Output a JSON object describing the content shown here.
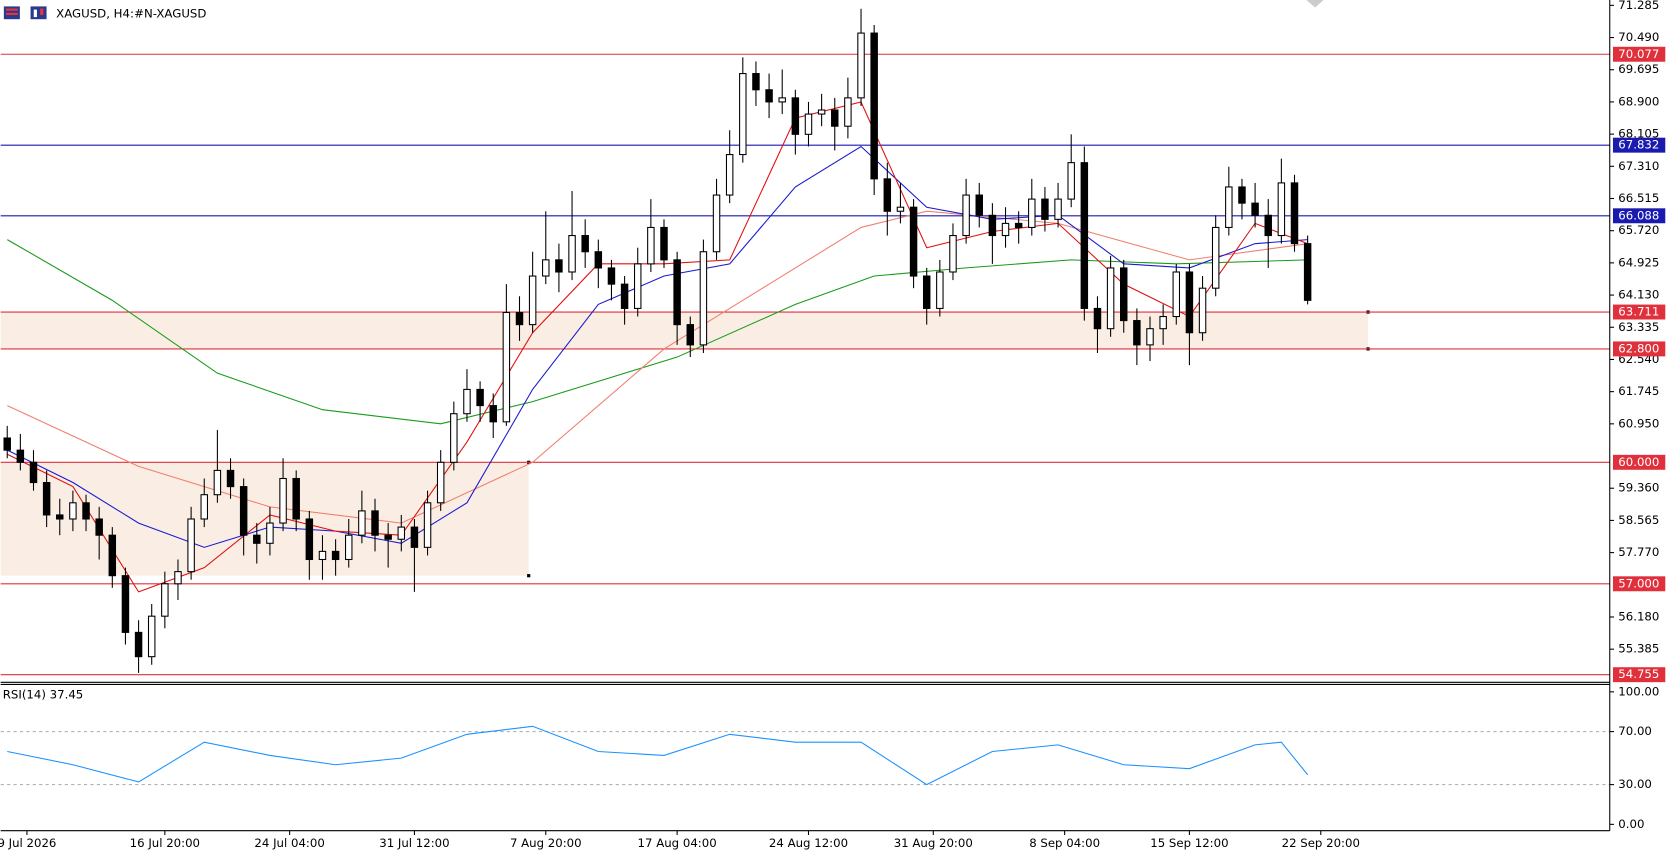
{
  "header": {
    "symbol": "XAGUSD, H4:",
    "name": "#N-XAGUSD"
  },
  "chart_data": [
    {
      "type": "candlestick",
      "xlim": [
        -0.5,
        122
      ],
      "xticks": [
        {
          "value": 1.5,
          "label": "9 Jul 2026"
        },
        {
          "value": 12,
          "label": "16 Jul 20:00"
        },
        {
          "value": 21.5,
          "label": "24 Jul 04:00"
        },
        {
          "value": 31,
          "label": "31 Jul 12:00"
        },
        {
          "value": 41,
          "label": "7 Aug 20:00"
        },
        {
          "value": 51,
          "label": "17 Aug 04:00"
        },
        {
          "value": 61,
          "label": "24 Aug 12:00"
        },
        {
          "value": 70.5,
          "label": "31 Aug 20:00"
        },
        {
          "value": 80.5,
          "label": "8 Sep 04:00"
        },
        {
          "value": 90,
          "label": "15 Sep 12:00"
        },
        {
          "value": 100,
          "label": "22 Sep 20:00"
        }
      ],
      "ylim": [
        54.62,
        71.417
      ],
      "yticks": [
        71.285,
        {
          "value": 70.49,
          "label": "70.490"
        },
        69.695,
        {
          "value": 68.9,
          "label": "68.900"
        },
        68.105,
        {
          "value": 67.31,
          "label": "67.310"
        },
        66.515,
        {
          "value": 65.72,
          "label": "65.720"
        },
        64.925,
        {
          "value": 64.13,
          "label": "64.130"
        },
        63.335,
        {
          "value": 62.54,
          "label": "62.540"
        },
        61.745,
        {
          "value": 60.95,
          "label": "60.950"
        },
        {
          "value": 59.36,
          "label": "59.360"
        },
        58.565,
        {
          "value": 57.77,
          "label": "57.770"
        },
        {
          "value": 56.18,
          "label": "56.180"
        },
        55.385
      ],
      "ohlc": [
        [
          60.6,
          60.9,
          60.1,
          60.3
        ],
        [
          60.3,
          60.7,
          59.8,
          60.0
        ],
        [
          60.0,
          60.3,
          59.3,
          59.5
        ],
        [
          59.5,
          59.8,
          58.4,
          58.7
        ],
        [
          58.7,
          59.1,
          58.2,
          58.6
        ],
        [
          58.6,
          59.3,
          58.3,
          59.0
        ],
        [
          59.0,
          59.2,
          58.3,
          58.6
        ],
        [
          58.6,
          58.9,
          57.6,
          58.2
        ],
        [
          58.2,
          58.4,
          56.9,
          57.2
        ],
        [
          57.2,
          57.4,
          55.5,
          55.8
        ],
        [
          55.8,
          56.1,
          54.8,
          55.2
        ],
        [
          55.2,
          56.5,
          55.0,
          56.2
        ],
        [
          56.2,
          57.3,
          55.9,
          57.0
        ],
        [
          57.0,
          57.6,
          56.6,
          57.3
        ],
        [
          57.3,
          58.9,
          57.1,
          58.6
        ],
        [
          58.6,
          59.6,
          58.4,
          59.2
        ],
        [
          59.2,
          60.8,
          59.0,
          59.8
        ],
        [
          59.8,
          60.1,
          59.1,
          59.4
        ],
        [
          59.4,
          59.6,
          57.7,
          58.2
        ],
        [
          58.2,
          58.5,
          57.5,
          58.0
        ],
        [
          58.0,
          58.9,
          57.7,
          58.5
        ],
        [
          58.5,
          60.1,
          58.3,
          59.6
        ],
        [
          59.6,
          59.8,
          58.3,
          58.6
        ],
        [
          58.6,
          58.8,
          57.1,
          57.6
        ],
        [
          57.6,
          58.2,
          57.1,
          57.8
        ],
        [
          57.8,
          58.1,
          57.2,
          57.6
        ],
        [
          57.6,
          58.6,
          57.4,
          58.2
        ],
        [
          58.2,
          59.3,
          58.0,
          58.8
        ],
        [
          58.8,
          59.1,
          57.8,
          58.2
        ],
        [
          58.2,
          58.5,
          57.4,
          58.1
        ],
        [
          58.1,
          58.7,
          57.8,
          58.4
        ],
        [
          58.4,
          58.6,
          56.8,
          57.9
        ],
        [
          57.9,
          59.3,
          57.7,
          59.0
        ],
        [
          59.0,
          60.3,
          58.8,
          60.0
        ],
        [
          60.0,
          61.5,
          59.8,
          61.2
        ],
        [
          61.2,
          62.3,
          61.0,
          61.8
        ],
        [
          61.8,
          62.0,
          61.0,
          61.4
        ],
        [
          61.4,
          61.7,
          60.6,
          61.0
        ],
        [
          61.0,
          64.4,
          60.9,
          63.7
        ],
        [
          63.7,
          64.1,
          63.0,
          63.4
        ],
        [
          63.4,
          65.2,
          63.2,
          64.6
        ],
        [
          64.6,
          66.2,
          64.4,
          65.0
        ],
        [
          65.0,
          65.4,
          64.2,
          64.7
        ],
        [
          64.7,
          66.7,
          64.5,
          65.6
        ],
        [
          65.6,
          66.0,
          64.8,
          65.2
        ],
        [
          65.2,
          65.5,
          64.3,
          64.8
        ],
        [
          64.8,
          65.0,
          64.0,
          64.4
        ],
        [
          64.4,
          64.6,
          63.4,
          63.8
        ],
        [
          63.8,
          65.3,
          63.6,
          64.9
        ],
        [
          64.9,
          66.5,
          64.7,
          65.8
        ],
        [
          65.8,
          66.0,
          64.8,
          65.0
        ],
        [
          65.0,
          65.2,
          62.9,
          63.4
        ],
        [
          63.4,
          63.6,
          62.6,
          62.9
        ],
        [
          62.9,
          65.5,
          62.7,
          65.2
        ],
        [
          65.2,
          67.0,
          65.0,
          66.6
        ],
        [
          66.6,
          68.2,
          66.4,
          67.6
        ],
        [
          67.6,
          70.0,
          67.4,
          69.6
        ],
        [
          69.6,
          69.9,
          68.8,
          69.2
        ],
        [
          69.2,
          69.6,
          68.5,
          68.9
        ],
        [
          68.9,
          69.7,
          68.6,
          69.0
        ],
        [
          69.0,
          69.2,
          67.6,
          68.1
        ],
        [
          68.1,
          68.9,
          67.8,
          68.6
        ],
        [
          68.6,
          69.1,
          68.3,
          68.7
        ],
        [
          68.7,
          69.0,
          67.7,
          68.3
        ],
        [
          68.3,
          69.5,
          68.0,
          69.0
        ],
        [
          69.0,
          71.2,
          68.8,
          70.6
        ],
        [
          70.6,
          70.8,
          66.6,
          67.0
        ],
        [
          67.0,
          67.4,
          65.6,
          66.2
        ],
        [
          66.2,
          66.9,
          65.9,
          66.3
        ],
        [
          66.3,
          66.5,
          64.3,
          64.6
        ],
        [
          64.6,
          64.8,
          63.4,
          63.8
        ],
        [
          63.8,
          65.0,
          63.6,
          64.7
        ],
        [
          64.7,
          65.9,
          64.5,
          65.6
        ],
        [
          65.6,
          67.0,
          65.4,
          66.6
        ],
        [
          66.6,
          66.9,
          65.8,
          66.1
        ],
        [
          66.1,
          66.4,
          64.9,
          65.6
        ],
        [
          65.6,
          66.3,
          65.3,
          65.9
        ],
        [
          65.9,
          66.2,
          65.4,
          65.8
        ],
        [
          65.8,
          67.0,
          65.6,
          66.5
        ],
        [
          66.5,
          66.8,
          65.7,
          66.0
        ],
        [
          66.0,
          66.9,
          65.8,
          66.5
        ],
        [
          66.5,
          68.1,
          66.3,
          67.4
        ],
        [
          67.4,
          67.8,
          63.5,
          63.8
        ],
        [
          63.8,
          64.1,
          62.7,
          63.3
        ],
        [
          63.3,
          65.1,
          63.1,
          64.8
        ],
        [
          64.8,
          65.0,
          63.2,
          63.5
        ],
        [
          63.5,
          63.8,
          62.4,
          62.9
        ],
        [
          62.9,
          63.6,
          62.5,
          63.3
        ],
        [
          63.3,
          63.9,
          62.9,
          63.6
        ],
        [
          63.6,
          64.9,
          63.4,
          64.7
        ],
        [
          64.7,
          64.9,
          62.4,
          63.2
        ],
        [
          63.2,
          64.6,
          63.0,
          64.3
        ],
        [
          64.3,
          66.1,
          64.1,
          65.8
        ],
        [
          65.8,
          67.3,
          65.6,
          66.8
        ],
        [
          66.8,
          67.0,
          66.0,
          66.4
        ],
        [
          66.4,
          66.9,
          65.8,
          66.1
        ],
        [
          66.1,
          66.5,
          64.8,
          65.6
        ],
        [
          65.6,
          67.5,
          65.4,
          66.9
        ],
        [
          66.9,
          67.1,
          65.2,
          65.4
        ],
        [
          65.4,
          65.6,
          63.9,
          64.0
        ]
      ],
      "up_color": "#ffffff",
      "down_color": "#000000",
      "moving_averages": [
        {
          "color": "#1a9a1a",
          "x": [
            0,
            8,
            16,
            24,
            33,
            40,
            51,
            60,
            66,
            73,
            81,
            89,
            99
          ],
          "values": [
            65.5,
            64.0,
            62.2,
            61.3,
            60.95,
            61.5,
            62.6,
            63.9,
            64.6,
            64.8,
            65.0,
            64.9,
            65.0
          ]
        },
        {
          "color": "#f08070",
          "x": [
            0,
            10,
            20,
            30,
            40,
            50,
            60,
            65,
            70,
            80,
            90,
            99
          ],
          "values": [
            61.4,
            59.9,
            58.9,
            58.5,
            60.0,
            62.8,
            64.8,
            65.8,
            66.2,
            65.9,
            65.0,
            65.4
          ]
        },
        {
          "color": "#1a1ad0",
          "x": [
            0,
            5,
            10,
            15,
            20,
            25,
            30,
            35,
            40,
            45,
            50,
            55,
            60,
            65,
            70,
            75,
            80,
            85,
            90,
            95,
            99
          ],
          "values": [
            60.3,
            59.5,
            58.5,
            57.9,
            58.4,
            58.3,
            58.0,
            59.0,
            61.8,
            63.9,
            64.6,
            64.9,
            66.8,
            67.8,
            66.3,
            66.0,
            66.1,
            64.9,
            64.8,
            65.4,
            65.5
          ]
        },
        {
          "color": "#e01010",
          "x": [
            0,
            5,
            10,
            15,
            20,
            25,
            30,
            35,
            40,
            45,
            50,
            55,
            60,
            65,
            70,
            75,
            80,
            85,
            90,
            95,
            99
          ],
          "values": [
            60.2,
            59.4,
            56.8,
            57.4,
            58.7,
            58.3,
            58.2,
            60.5,
            63.2,
            64.9,
            64.9,
            65.0,
            68.5,
            68.9,
            65.3,
            65.7,
            65.9,
            64.4,
            63.6,
            65.9,
            65.4
          ]
        }
      ],
      "zones": [
        {
          "from": 62.8,
          "to": 63.711,
          "x": [
            -0.5,
            103.6
          ],
          "color": "#faeee4"
        },
        {
          "from": 57.2,
          "to": 60.0,
          "x": [
            -0.5,
            39.7
          ],
          "color": "#faeee4"
        }
      ],
      "levels": [
        {
          "value": 70.077,
          "color": "#e0303c"
        },
        {
          "value": 67.832,
          "color": "#1a1ab0"
        },
        {
          "value": 66.088,
          "color": "#1a1ab0"
        },
        {
          "value": 63.711,
          "color": "#e0303c"
        },
        {
          "value": 62.8,
          "label": "62.800",
          "color": "#e0303c"
        },
        {
          "value": 60.0,
          "label": "60.000",
          "color": "#e0303c"
        },
        {
          "value": 57.0,
          "label": "57.000",
          "color": "#e0303c"
        },
        {
          "value": 54.755,
          "color": "#e0303c"
        }
      ]
    },
    {
      "type": "line",
      "title": "RSI(14) 37.45",
      "x": [
        0,
        5,
        10,
        15,
        20,
        25,
        30,
        35,
        40,
        45,
        50,
        55,
        60,
        65,
        70,
        75,
        80,
        85,
        90,
        95,
        97,
        99
      ],
      "values": [
        55,
        45,
        32,
        62,
        52,
        45,
        50,
        68,
        74,
        55,
        52,
        68,
        62,
        62,
        30,
        55,
        60,
        45,
        42,
        60,
        62,
        37.45
      ],
      "color": "#1e90ff",
      "ylim": [
        -4.8,
        105.6
      ],
      "yticks": [
        {
          "value": 100,
          "label": "100.00"
        },
        {
          "value": 70,
          "label": "70.00"
        },
        {
          "value": 30,
          "label": "30.00"
        },
        {
          "value": 0,
          "label": "0.00"
        }
      ],
      "levels": [
        70,
        30
      ]
    }
  ]
}
